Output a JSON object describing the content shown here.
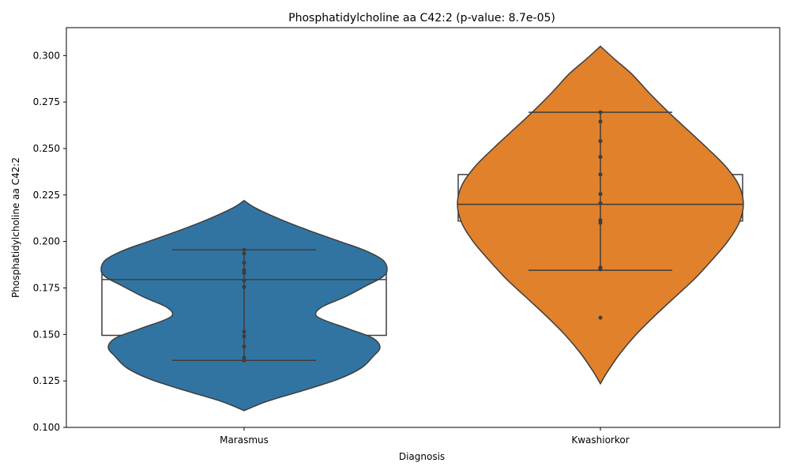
{
  "chart_data": {
    "type": "violin",
    "title": "Phosphatidylcholine aa C42:2 (p-value: 8.7e-05)",
    "xlabel": "Diagnosis",
    "ylabel": "Phosphatidylcholine aa C42:2",
    "ylim": [
      0.1,
      0.315
    ],
    "yticks": [
      "0.100",
      "0.125",
      "0.150",
      "0.175",
      "0.200",
      "0.225",
      "0.250",
      "0.275",
      "0.300"
    ],
    "grid": false,
    "categories": [
      "Marasmus",
      "Kwashiorkor"
    ],
    "series": [
      {
        "category": "Marasmus",
        "color": "#3274a1",
        "points": [
          0.1955,
          0.1935,
          0.1885,
          0.1845,
          0.183,
          0.179,
          0.1755,
          0.1515,
          0.149,
          0.1435,
          0.1375,
          0.136
        ],
        "box": {
          "q1": 0.1495,
          "median": 0.1795,
          "q3": 0.1845,
          "whisker_low": 0.136,
          "whisker_high": 0.1955
        },
        "violin_range": [
          0.109,
          0.222
        ],
        "density_profile": [
          [
            0.109,
            0.0
          ],
          [
            0.114,
            0.16
          ],
          [
            0.12,
            0.42
          ],
          [
            0.126,
            0.66
          ],
          [
            0.132,
            0.82
          ],
          [
            0.138,
            0.9
          ],
          [
            0.143,
            0.95
          ],
          [
            0.148,
            0.9
          ],
          [
            0.153,
            0.73
          ],
          [
            0.158,
            0.55
          ],
          [
            0.161,
            0.5
          ],
          [
            0.165,
            0.55
          ],
          [
            0.17,
            0.7
          ],
          [
            0.176,
            0.85
          ],
          [
            0.181,
            0.97
          ],
          [
            0.185,
            1.0
          ],
          [
            0.19,
            0.97
          ],
          [
            0.195,
            0.85
          ],
          [
            0.2,
            0.67
          ],
          [
            0.206,
            0.45
          ],
          [
            0.212,
            0.25
          ],
          [
            0.218,
            0.08
          ],
          [
            0.222,
            0.0
          ]
        ]
      },
      {
        "category": "Kwashiorkor",
        "color": "#e1812c",
        "points": [
          0.2695,
          0.2645,
          0.254,
          0.2455,
          0.236,
          0.2255,
          0.2205,
          0.2115,
          0.21,
          0.186,
          0.185,
          0.159
        ],
        "box": {
          "q1": 0.211,
          "median": 0.22,
          "q3": 0.236,
          "whisker_low": 0.1845,
          "whisker_high": 0.2695
        },
        "violin_range": [
          0.1235,
          0.305
        ],
        "density_profile": [
          [
            0.1235,
            0.0
          ],
          [
            0.13,
            0.05
          ],
          [
            0.14,
            0.14
          ],
          [
            0.15,
            0.25
          ],
          [
            0.16,
            0.38
          ],
          [
            0.17,
            0.52
          ],
          [
            0.18,
            0.66
          ],
          [
            0.19,
            0.78
          ],
          [
            0.2,
            0.89
          ],
          [
            0.21,
            0.97
          ],
          [
            0.22,
            1.0
          ],
          [
            0.23,
            0.97
          ],
          [
            0.24,
            0.88
          ],
          [
            0.25,
            0.75
          ],
          [
            0.26,
            0.61
          ],
          [
            0.27,
            0.47
          ],
          [
            0.28,
            0.34
          ],
          [
            0.29,
            0.22
          ],
          [
            0.298,
            0.1
          ],
          [
            0.305,
            0.0
          ]
        ]
      }
    ]
  }
}
